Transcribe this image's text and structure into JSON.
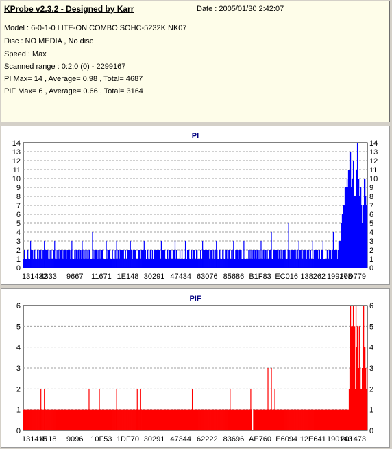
{
  "header": {
    "title": "KProbe v2.3.2 - Designed by Karr",
    "date": "Date : 2005/01/30 2:42:07",
    "model": "Model : 6-0-1-0 LITE-ON COMBO SOHC-5232K NK07",
    "disc": "Disc : NO MEDIA , No disc",
    "speed": "Speed : Max",
    "range": "Scanned range : 0:2:0 (0) - 2299167",
    "pi_stats": "PI Max= 14 , Average= 0.98 , Total= 4687",
    "pif_stats": "PIF Max= 6 , Average= 0.66 , Total= 3164"
  },
  "colors": {
    "pi": "#0000ff",
    "pif": "#ff0000",
    "grid": "#a0a0a0",
    "title": "#000080"
  },
  "chart_data": [
    {
      "type": "bar",
      "title": "PI",
      "ylim": [
        0,
        14
      ],
      "yticks": [
        0,
        1,
        2,
        3,
        4,
        5,
        6,
        7,
        8,
        9,
        10,
        11,
        12,
        13,
        14
      ],
      "xticklabels": [
        "131432",
        "4333",
        "9667",
        "11671",
        "1E148",
        "30291",
        "47434",
        "63076",
        "85686",
        "B1F83",
        "EC016",
        "138262",
        "199178",
        "20D779"
      ],
      "grid": true,
      "baseline_range": [
        1,
        2
      ],
      "spike_positions": [
        0.02,
        0.06,
        0.09,
        0.14,
        0.17,
        0.2,
        0.24,
        0.27,
        0.31,
        0.35,
        0.4,
        0.44,
        0.47,
        0.52,
        0.56,
        0.61,
        0.64,
        0.69,
        0.72,
        0.77,
        0.8,
        0.84,
        0.87,
        0.9
      ],
      "spike_values": [
        3,
        3,
        3,
        3,
        3,
        4,
        3,
        3,
        3,
        3,
        3,
        3,
        3,
        3,
        3,
        3,
        3,
        3,
        4,
        5,
        3,
        3,
        3,
        4
      ],
      "tail_values": [
        3,
        4,
        5,
        6,
        7,
        9,
        10,
        12,
        11,
        13,
        9,
        10,
        12,
        8,
        11,
        14,
        10,
        9,
        13,
        8,
        7,
        10,
        8,
        7
      ]
    },
    {
      "type": "bar",
      "title": "PIF",
      "ylim": [
        0,
        6
      ],
      "yticks": [
        0,
        1,
        2,
        3,
        4,
        5,
        6
      ],
      "xticklabels": [
        "131415",
        "4118",
        "9096",
        "10F53",
        "1DF70",
        "30291",
        "47344",
        "62222",
        "83696",
        "AE760",
        "E6094",
        "12E641",
        "190143",
        "201473"
      ],
      "grid": true,
      "baseline": 1,
      "spike_positions": [
        0.05,
        0.06,
        0.19,
        0.22,
        0.27,
        0.33,
        0.34,
        0.49,
        0.6,
        0.66,
        0.71,
        0.72,
        0.73
      ],
      "spike_values": [
        2,
        2,
        2,
        2,
        2,
        2,
        2,
        2,
        2,
        2,
        3,
        3,
        2
      ],
      "tail_values": [
        2,
        3,
        6,
        4,
        5,
        6,
        5,
        3,
        6,
        4,
        5,
        3,
        6,
        4,
        2,
        3,
        5,
        6,
        4,
        3,
        2,
        3
      ]
    }
  ]
}
